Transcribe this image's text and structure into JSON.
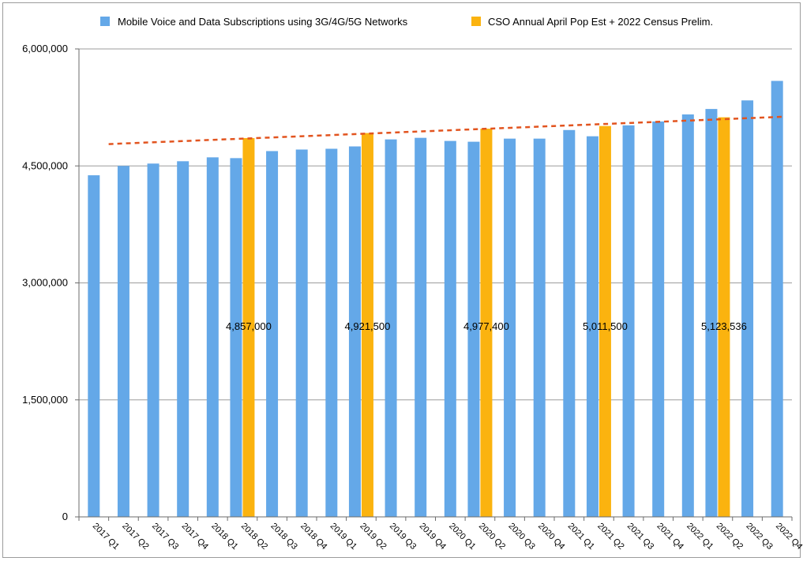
{
  "chart_data": {
    "type": "bar",
    "title": "",
    "xlabel": "",
    "ylabel": "",
    "ylim": [
      0,
      6000000
    ],
    "yticks": [
      0,
      1500000,
      3000000,
      4500000,
      6000000
    ],
    "ytick_labels": [
      "0",
      "1,500,000",
      "3,000,000",
      "4,500,000",
      "6,000,000"
    ],
    "grid": true,
    "legend_position": "top",
    "categories": [
      "2017 Q1",
      "2017 Q2",
      "2017 Q3",
      "2017 Q4",
      "2018 Q1",
      "2018 Q2",
      "2018 Q3",
      "2018 Q4",
      "2019 Q1",
      "2019 Q2",
      "2019 Q3",
      "2019 Q4",
      "2020 Q1",
      "2020 Q2",
      "2020 Q3",
      "2020 Q4",
      "2021 Q1",
      "2021 Q2",
      "2021 Q3",
      "2021 Q4",
      "2022 Q1",
      "2022 Q2",
      "2022 Q3",
      "2022 Q4"
    ],
    "series": [
      {
        "name": "Mobile Voice and Data Subscriptions using 3G/4G/5G Networks",
        "color": "#64a8e8",
        "values": [
          4380000,
          4500000,
          4530000,
          4560000,
          4610000,
          4600000,
          4690000,
          4710000,
          4720000,
          4750000,
          4840000,
          4860000,
          4820000,
          4810000,
          4850000,
          4850000,
          4960000,
          4880000,
          5020000,
          5070000,
          5160000,
          5230000,
          5340000,
          5590000
        ]
      },
      {
        "name": "CSO Annual April Pop Est + 2022 Census Prelim.",
        "color": "#fbb30f",
        "values": [
          null,
          null,
          null,
          null,
          null,
          4857000,
          null,
          null,
          null,
          4921500,
          null,
          null,
          null,
          4977400,
          null,
          null,
          null,
          5011500,
          null,
          null,
          null,
          5123536,
          null,
          null
        ],
        "data_labels": [
          "",
          "",
          "",
          "",
          "",
          "4,857,000",
          "",
          "",
          "",
          "4,921,500",
          "",
          "",
          "",
          "4,977,400",
          "",
          "",
          "",
          "5,011,500",
          "",
          "",
          "",
          "5,123,536",
          "",
          ""
        ]
      }
    ],
    "trendline": {
      "series": "Mobile Voice and Data Subscriptions using 3G/4G/5G Networks",
      "type": "linear",
      "color": "#e2541f",
      "style": "dashed",
      "start_value": 4780000,
      "end_value": 5130000
    }
  }
}
